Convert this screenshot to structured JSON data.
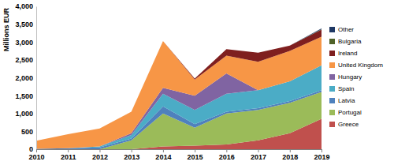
{
  "chart_data": {
    "type": "area",
    "stacked": true,
    "y_label": "Millions EUR",
    "categories": [
      "2010",
      "2011",
      "2012",
      "2013",
      "2014",
      "2015",
      "2016",
      "2017",
      "2018",
      "2019"
    ],
    "ylim": [
      0,
      4000
    ],
    "yticks": [
      0,
      500,
      {
        "value": 1000,
        "label": "1,000"
      },
      {
        "value": 1500,
        "label": "1,500"
      },
      {
        "value": 2000,
        "label": "2,000"
      },
      {
        "value": 2500,
        "label": "2,500"
      },
      {
        "value": 3000,
        "label": "3,000"
      },
      {
        "value": 3500,
        "label": "3,500"
      },
      {
        "value": 4000,
        "label": "4,000"
      }
    ],
    "legend": "right",
    "series": [
      {
        "name": "Greece",
        "color": "#c0504d",
        "values": [
          0,
          0,
          0,
          0,
          80,
          100,
          130,
          250,
          450,
          850
        ]
      },
      {
        "name": "Portugal",
        "color": "#9bbb59",
        "values": [
          0,
          0,
          0,
          250,
          920,
          500,
          870,
          850,
          850,
          750
        ]
      },
      {
        "name": "Latvia",
        "color": "#4f81bd",
        "values": [
          10,
          30,
          50,
          50,
          200,
          100,
          50,
          50,
          50,
          50
        ]
      },
      {
        "name": "Spain",
        "color": "#4bacc6",
        "values": [
          0,
          0,
          30,
          100,
          350,
          400,
          500,
          500,
          550,
          700
        ]
      },
      {
        "name": "Hungary",
        "color": "#8064a2",
        "values": [
          0,
          0,
          0,
          50,
          170,
          400,
          570,
          0,
          0,
          0
        ]
      },
      {
        "name": "United Kingdom",
        "color": "#f79646",
        "values": [
          230,
          390,
          500,
          600,
          1310,
          450,
          500,
          800,
          850,
          800
        ]
      },
      {
        "name": "Ireland",
        "color": "#7f1f1f",
        "values": [
          0,
          0,
          0,
          0,
          0,
          30,
          180,
          250,
          150,
          200
        ]
      },
      {
        "name": "Bulgaria",
        "color": "#4f6228",
        "values": [
          0,
          0,
          0,
          0,
          0,
          0,
          0,
          0,
          0,
          10
        ]
      },
      {
        "name": "Other",
        "color": "#1f3864",
        "values": [
          0,
          0,
          0,
          0,
          0,
          0,
          0,
          0,
          0,
          20
        ]
      }
    ]
  }
}
